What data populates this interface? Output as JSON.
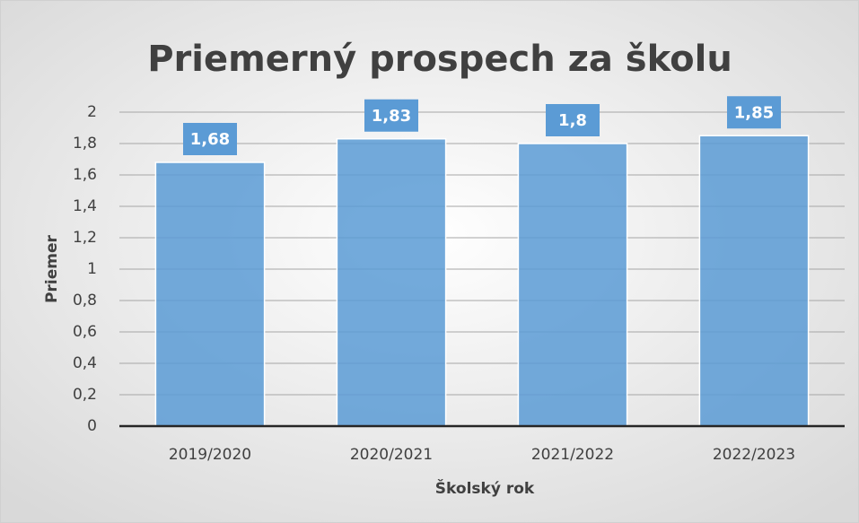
{
  "chart_data": {
    "type": "bar",
    "title": "Priemerný prospech za školu",
    "x_label": "Školský rok",
    "y_label": "Priemer",
    "categories": [
      "2019/2020",
      "2020/2021",
      "2021/2022",
      "2022/2023"
    ],
    "values": [
      1.68,
      1.83,
      1.8,
      1.85
    ],
    "value_labels": [
      "1,68",
      "1,83",
      "1,8",
      "1,85"
    ],
    "color": "#5b9bd5",
    "ylim": [
      0,
      2
    ],
    "yticks": [
      0,
      {
        "value": 0.2,
        "label": "0,2"
      },
      {
        "value": 0.4,
        "label": "0,4"
      },
      {
        "value": 0.6,
        "label": "0,6"
      },
      {
        "value": 0.8,
        "label": "0,8"
      },
      1,
      {
        "value": 1.2,
        "label": "1,2"
      },
      {
        "value": 1.4,
        "label": "1,4"
      },
      {
        "value": 1.6,
        "label": "1,6"
      },
      {
        "value": 1.8,
        "label": "1,8"
      },
      2
    ],
    "grid": true
  }
}
